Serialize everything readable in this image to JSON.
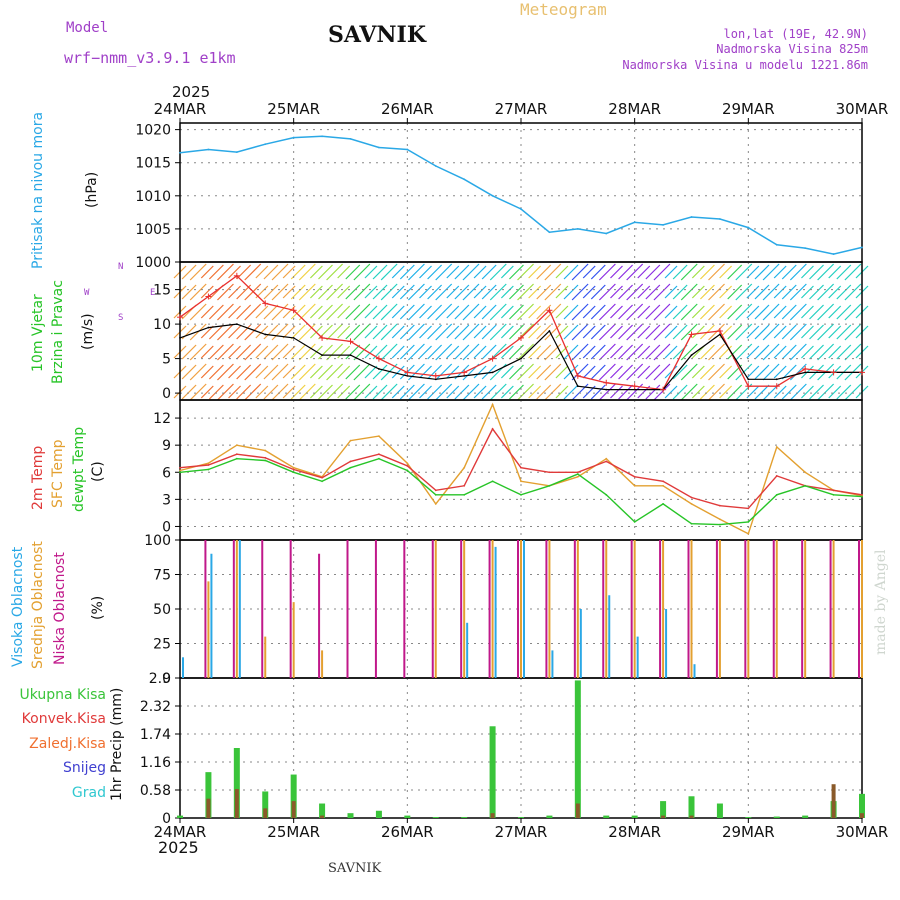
{
  "header": {
    "model_label": "Model",
    "model_name": "wrf−nmm_v3.9.1 e1km",
    "station": "SAVNIK",
    "meteogram": "Meteogram",
    "lonlat": "lon,lat (19E, 42.9N)",
    "altitude": "Nadmorska Visina 825m",
    "model_altitude": "Nadmorska Visina u modelu 1221.86m",
    "year_top": "2025",
    "year_bottom": "2025",
    "footer_station": "SAVNIK",
    "credit": "made by Angel"
  },
  "colors": {
    "pressure": "#2aa8e6",
    "wind_mean": "#000000",
    "wind_gust": "#e83030",
    "temp_2m": "#e03a3a",
    "temp_sfc": "#e3a030",
    "temp_dew": "#27c427",
    "cloud_high": "#2aa8e6",
    "cloud_mid": "#e3a030",
    "cloud_low": "#c0188a",
    "precip_total": "#3ac43a",
    "precip_conv": "#e03a3a",
    "precip_strat": "#f07030",
    "precip_snow": "#4040d0",
    "precip_hail": "#30c8d0"
  },
  "dates": [
    "24MAR",
    "25MAR",
    "26MAR",
    "27MAR",
    "28MAR",
    "29MAR",
    "30MAR"
  ],
  "panels": {
    "pressure": {
      "label": "Pritisak na nivou mora",
      "unit": "(hPa)",
      "ticks": [
        "1000",
        "1005",
        "1010",
        "1015",
        "1020"
      ]
    },
    "wind": {
      "label_1": "10m Vjetar",
      "label_2": "Brzina i Pravac",
      "unit": "(m/s)",
      "ticks": [
        "0",
        "5",
        "10",
        "15"
      ],
      "compass_n": "N",
      "compass_s": "S",
      "compass_w": "W",
      "compass_e": "E"
    },
    "temp": {
      "label_1": "2m Temp",
      "label_2": "SFC Temp",
      "label_3": "dewpt Temp",
      "unit": "(C)",
      "ticks": [
        "0",
        "3",
        "6",
        "9",
        "12"
      ]
    },
    "cloud": {
      "label_1": "Visoka Oblacnost",
      "label_2": "Srednja Oblacnost",
      "label_3": "Niska Oblacnost",
      "unit": "(%)",
      "ticks": [
        "0",
        "25",
        "50",
        "75",
        "100"
      ]
    },
    "precip": {
      "legend_total": "Ukupna Kisa",
      "legend_conv": "Konvek.Kisa",
      "legend_strat": "Zaledj.Kisa",
      "legend_snow": "Snijeg",
      "legend_hail": "Grad",
      "unit": "1hr Precip (mm)",
      "ticks": [
        "0",
        "0.58",
        "1.16",
        "1.74",
        "2.32",
        "2.9"
      ]
    }
  },
  "chart_data": [
    {
      "type": "line",
      "title": "Pritisak na nivou mora",
      "ylabel": "(hPa)",
      "ylim": [
        1000,
        1021
      ],
      "x_hours": [
        0,
        6,
        12,
        18,
        24,
        30,
        36,
        42,
        48,
        54,
        60,
        66,
        72,
        78,
        84,
        90,
        96,
        102,
        108,
        114,
        120,
        126,
        132,
        138,
        144
      ],
      "series": [
        {
          "name": "Pritisak na nivou mora",
          "values": [
            1016.5,
            1017.0,
            1016.6,
            1017.8,
            1018.8,
            1019.0,
            1018.6,
            1017.3,
            1017.0,
            1014.5,
            1012.5,
            1010.0,
            1008.0,
            1004.5,
            1005.0,
            1004.3,
            1006.0,
            1005.6,
            1006.8,
            1006.5,
            1005.2,
            1002.6,
            1002.1,
            1001.2,
            1002.2
          ]
        }
      ]
    },
    {
      "type": "line",
      "title": "10m Vjetar Brzina i Pravac",
      "ylabel": "(m/s)",
      "ylim": [
        -1,
        19
      ],
      "x_hours": [
        0,
        6,
        12,
        18,
        24,
        30,
        36,
        42,
        48,
        54,
        60,
        66,
        72,
        78,
        84,
        90,
        96,
        102,
        108,
        114,
        120,
        126,
        132,
        138,
        144
      ],
      "series": [
        {
          "name": "mean",
          "values": [
            8.0,
            9.5,
            10.0,
            8.5,
            8.0,
            5.5,
            5.5,
            3.5,
            2.5,
            2.0,
            2.5,
            3.0,
            5.0,
            9.0,
            1.0,
            0.5,
            0.5,
            0.5,
            5.5,
            8.5,
            2.0,
            2.0,
            3.0,
            3.0,
            3.0
          ]
        },
        {
          "name": "gust",
          "values": [
            11.0,
            14.0,
            17.0,
            13.0,
            12.0,
            8.0,
            7.5,
            5.0,
            3.0,
            2.5,
            3.0,
            5.0,
            8.0,
            12.0,
            2.5,
            1.5,
            1.0,
            0.5,
            8.5,
            9.0,
            1.0,
            1.0,
            3.5,
            3.0,
            3.0
          ]
        }
      ]
    },
    {
      "type": "line",
      "title": "2m Temp / SFC Temp / dewpt Temp",
      "ylabel": "(C)",
      "ylim": [
        -1.5,
        14
      ],
      "x_hours": [
        0,
        6,
        12,
        18,
        24,
        30,
        36,
        42,
        48,
        54,
        60,
        66,
        72,
        78,
        84,
        90,
        96,
        102,
        108,
        114,
        120,
        126,
        132,
        138,
        144
      ],
      "series": [
        {
          "name": "2m Temp",
          "values": [
            6.5,
            6.8,
            8.0,
            7.6,
            6.3,
            5.4,
            7.2,
            8.0,
            6.7,
            4.0,
            4.5,
            10.8,
            6.5,
            6.0,
            6.0,
            7.2,
            5.5,
            5.0,
            3.2,
            2.3,
            2.0,
            5.6,
            4.5,
            4.0,
            3.5
          ]
        },
        {
          "name": "SFC Temp",
          "values": [
            6.2,
            7.0,
            9.0,
            8.4,
            6.5,
            5.5,
            9.5,
            10.0,
            7.0,
            2.5,
            6.5,
            13.5,
            5.0,
            4.5,
            5.5,
            7.5,
            4.5,
            4.5,
            2.5,
            0.8,
            -0.8,
            8.8,
            6.0,
            4.0,
            3.4
          ]
        },
        {
          "name": "dewpt Temp",
          "values": [
            6.0,
            6.3,
            7.5,
            7.3,
            6.0,
            5.0,
            6.5,
            7.5,
            6.2,
            3.5,
            3.5,
            5.0,
            3.5,
            4.5,
            5.8,
            3.5,
            0.5,
            2.5,
            0.3,
            0.2,
            0.5,
            3.5,
            4.5,
            3.5,
            3.3
          ]
        }
      ]
    },
    {
      "type": "bar",
      "title": "Visoka / Srednja / Niska Oblacnost",
      "ylabel": "(%)",
      "ylim": [
        0,
        100
      ],
      "x_hours": [
        0,
        6,
        12,
        18,
        24,
        30,
        36,
        42,
        48,
        54,
        60,
        66,
        72,
        78,
        84,
        90,
        96,
        102,
        108,
        114,
        120,
        126,
        132,
        138,
        144
      ],
      "series": [
        {
          "name": "Visoka Oblacnost",
          "values": [
            15,
            90,
            100,
            0,
            0,
            0,
            0,
            0,
            0,
            0,
            40,
            95,
            100,
            20,
            50,
            60,
            30,
            50,
            10,
            0,
            0,
            0,
            0,
            0,
            0
          ]
        },
        {
          "name": "Srednja Oblacnost",
          "values": [
            0,
            70,
            100,
            30,
            55,
            20,
            0,
            0,
            0,
            100,
            100,
            100,
            100,
            100,
            100,
            100,
            100,
            100,
            100,
            100,
            100,
            100,
            100,
            100,
            100
          ]
        },
        {
          "name": "Niska Oblacnost",
          "values": [
            0,
            100,
            100,
            100,
            100,
            90,
            100,
            100,
            100,
            100,
            100,
            100,
            100,
            100,
            100,
            100,
            100,
            100,
            100,
            100,
            100,
            100,
            100,
            100,
            100
          ]
        }
      ]
    },
    {
      "type": "bar",
      "title": "1hr Precip (mm)",
      "ylabel": "1hr Precip (mm)",
      "ylim": [
        0,
        2.9
      ],
      "x_hours": [
        0,
        6,
        12,
        18,
        24,
        30,
        36,
        42,
        48,
        54,
        60,
        66,
        72,
        78,
        84,
        90,
        96,
        102,
        108,
        114,
        120,
        126,
        132,
        138,
        144
      ],
      "series": [
        {
          "name": "Ukupna Kisa",
          "values": [
            0.05,
            0.95,
            1.45,
            0.55,
            0.9,
            0.3,
            0.1,
            0.15,
            0.05,
            0.02,
            0.02,
            1.9,
            0.02,
            0.05,
            2.85,
            0.05,
            0.05,
            0.35,
            0.45,
            0.3,
            0.02,
            0.03,
            0.05,
            0.35,
            0.5
          ]
        },
        {
          "name": "Konvek.Kisa",
          "values": [
            0.0,
            0.4,
            0.6,
            0.2,
            0.35,
            0.05,
            0.0,
            0.0,
            0.0,
            0.0,
            0.0,
            0.1,
            0.0,
            0.0,
            0.3,
            0.0,
            0.0,
            0.05,
            0.05,
            0.0,
            0.0,
            0.0,
            0.0,
            0.7,
            0.1
          ]
        }
      ]
    }
  ]
}
